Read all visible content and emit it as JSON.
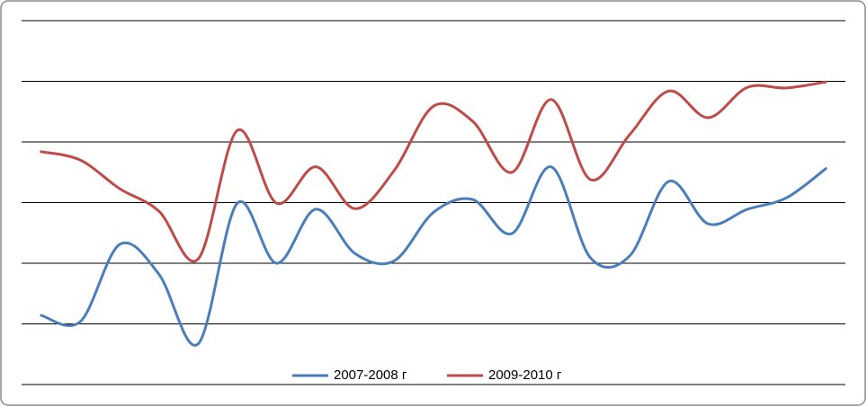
{
  "chart_data": {
    "type": "line",
    "categories": [
      null,
      null,
      null,
      null,
      null,
      null,
      null,
      null,
      null,
      null,
      null,
      null,
      null,
      null,
      null,
      null,
      null,
      null,
      null,
      null,
      null
    ],
    "series": [
      {
        "name": "2007-2008 г",
        "color": "#4a7ebb",
        "values": [
          1.14,
          1.04,
          2.31,
          1.82,
          0.67,
          2.99,
          2.0,
          2.89,
          2.16,
          2.04,
          2.84,
          3.05,
          2.49,
          3.59,
          2.09,
          2.12,
          3.35,
          2.65,
          2.89,
          3.08,
          3.56
        ]
      },
      {
        "name": "2009-2010 г",
        "color": "#be4b48",
        "values": [
          3.84,
          3.7,
          3.23,
          2.86,
          2.07,
          4.19,
          2.99,
          3.59,
          2.9,
          3.53,
          4.59,
          4.34,
          3.5,
          4.7,
          3.38,
          4.12,
          4.84,
          4.4,
          4.9,
          4.89,
          4.99
        ]
      }
    ],
    "ylim": [
      0,
      6
    ],
    "yticks": [
      0,
      1,
      2,
      3,
      4,
      5,
      6
    ],
    "grid": true,
    "legend": "bottom"
  }
}
